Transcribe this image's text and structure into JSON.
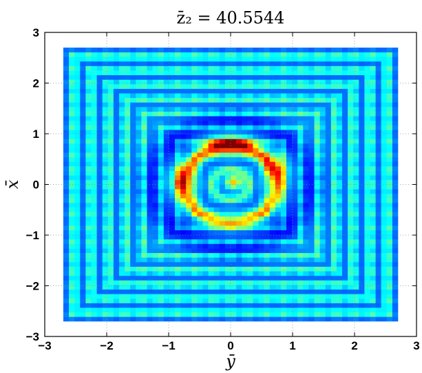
{
  "chart_data": {
    "type": "heatmap",
    "title": "z̄₂ = 40.5544",
    "xlabel": "ȳ",
    "ylabel": "x̄",
    "xlim": [
      -3,
      3
    ],
    "ylim": [
      -3,
      3
    ],
    "xticks": [
      -3,
      -2,
      -1,
      0,
      1,
      2,
      3
    ],
    "yticks": [
      -3,
      -2,
      -1,
      0,
      1,
      2,
      3
    ],
    "xtick_labels": [
      "−3",
      "−2",
      "−1",
      "0",
      "1",
      "2",
      "3"
    ],
    "ytick_labels": [
      "−3",
      "−2",
      "−1",
      "0",
      "1",
      "2",
      "3"
    ],
    "grid": true,
    "colormap": "jet",
    "data_extent": {
      "x": [
        -2.7,
        2.7
      ],
      "y": [
        -2.7,
        2.7
      ]
    },
    "grid_resolution": 60,
    "features": [
      {
        "description": "inner ring",
        "center": [
          0,
          0
        ],
        "radius": 0.75,
        "peak": 0.85
      },
      {
        "description": "central peak",
        "location": [
          0.05,
          0.05
        ],
        "peak": 0.75
      },
      {
        "description": "hot spot on ring",
        "location": [
          0.0,
          0.8
        ],
        "peak": 1.0
      },
      {
        "description": "square ripple bands",
        "spacing": 0.28,
        "peak": 0.55
      }
    ],
    "colors": {
      "low": "#00008f",
      "mid_low": "#0060ff",
      "mid": "#00ffff",
      "mid_high": "#ffff00",
      "high": "#ff0000"
    }
  }
}
